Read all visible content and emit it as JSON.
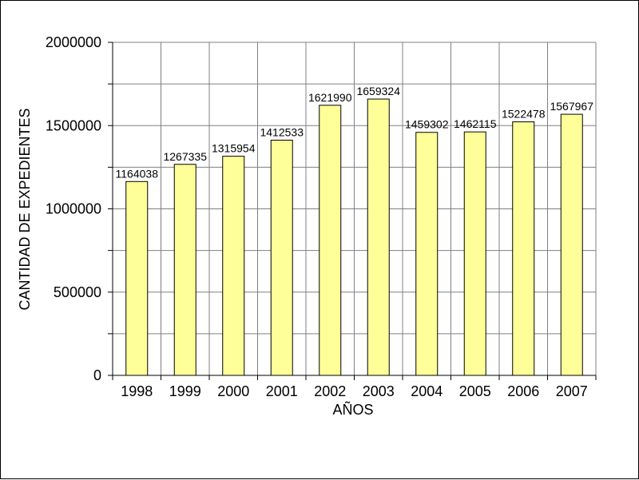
{
  "chart_data": {
    "type": "bar",
    "title": "",
    "xlabel": "AÑOS",
    "ylabel": "CANTIDAD DE EXPEDIENTES",
    "categories": [
      "1998",
      "1999",
      "2000",
      "2001",
      "2002",
      "2003",
      "2004",
      "2005",
      "2006",
      "2007"
    ],
    "values": [
      1164038,
      1267335,
      1315954,
      1412533,
      1621990,
      1659324,
      1459302,
      1462115,
      1522478,
      1567967
    ],
    "data_labels": [
      "1164038",
      "1267335",
      "1315954",
      "1412533",
      "1621990",
      "1659324",
      "1459302",
      "1462115",
      "1522478",
      "1567967"
    ],
    "ylim": [
      0,
      2000000
    ],
    "yticks": [
      0,
      500000,
      1000000,
      1500000,
      2000000
    ],
    "ytick_labels": [
      "0",
      "500000",
      "1000000",
      "1500000",
      "2000000"
    ],
    "grid": true,
    "legend": "none",
    "bar_color": "#ffff99",
    "bar_edge_color": "#000000",
    "grid_color": "#808080"
  }
}
